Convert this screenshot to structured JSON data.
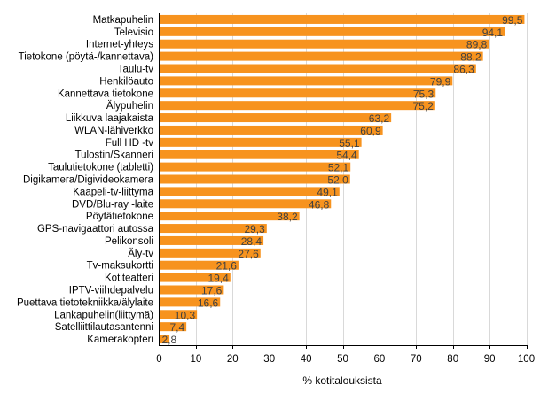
{
  "chart_data": {
    "type": "bar",
    "orientation": "horizontal",
    "categories": [
      "Matkapuhelin",
      "Televisio",
      "Internet-yhteys",
      "Tietokone (pöytä-/kannettava)",
      "Taulu-tv",
      "Henkilöauto",
      "Kannettava tietokone",
      "Älypuhelin",
      "Liikkuva laajakaista",
      "WLAN-lähiverkko",
      "Full HD -tv",
      "Tulostin/Skanneri",
      "Taulutietokone (tabletti)",
      "Digikamera/Digivideokamera",
      "Kaapeli-tv-liittymä",
      "DVD/Blu-ray -laite",
      "Pöytätietokone",
      "GPS-navigaattori autossa",
      "Pelikonsoli",
      "Äly-tv",
      "Tv-maksukortti",
      "Kotiteatteri",
      "IPTV-viihdepalvelu",
      "Puettava tietotekniikka/älylaite",
      "Lankapuhelin(liittymä)",
      "Satelliittilautasantenni",
      "Kamerakopteri"
    ],
    "values": [
      99.5,
      94.1,
      89.8,
      88.2,
      86.3,
      79.9,
      75.3,
      75.2,
      63.2,
      60.9,
      55.1,
      54.4,
      52.1,
      52.0,
      49.1,
      46.8,
      38.2,
      29.3,
      28.4,
      27.6,
      21.6,
      19.4,
      17.6,
      16.6,
      10.3,
      7.4,
      2.8
    ],
    "data_labels": [
      "99,5",
      "94,1",
      "89,8",
      "88,2",
      "86,3",
      "79,9",
      "75,3",
      "75,2",
      "63,2",
      "60,9",
      "55,1",
      "54,4",
      "52,1",
      "52,0",
      "49,1",
      "46,8",
      "38,2",
      "29,3",
      "28,4",
      "27,6",
      "21,6",
      "19,4",
      "17,6",
      "16,6",
      "10,3",
      "7,4",
      "2,8"
    ],
    "xlabel": "% kotitalouksista",
    "ylabel": "",
    "xlim": [
      0,
      100
    ],
    "xticks": [
      "0",
      "10",
      "20",
      "30",
      "40",
      "50",
      "60",
      "70",
      "80",
      "90",
      "100"
    ],
    "grid": true,
    "bar_color": "#F7931E",
    "grid_color": "#D9D9D9"
  }
}
